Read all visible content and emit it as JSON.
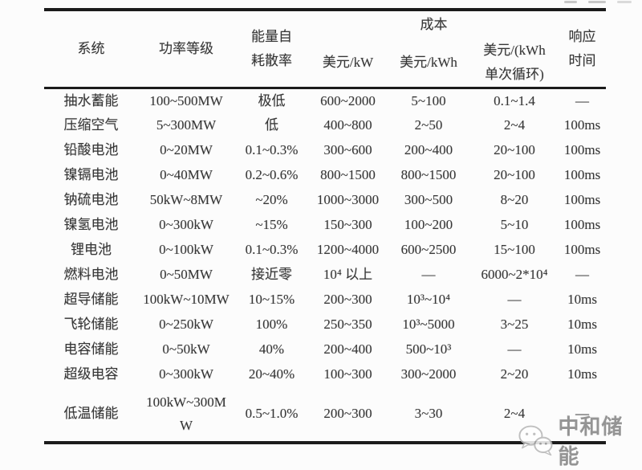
{
  "table": {
    "header": {
      "system": "系统",
      "power_rating": "功率等级",
      "self_dissipation": "能量自\n耗散率",
      "cost_group": "成本",
      "cost_usd_per_kw": "美元/kW",
      "cost_usd_per_kwh": "美元/kWh",
      "cost_usd_per_kwh_cycle": "美元/(kWh\n单次循环)",
      "response_time": "响应\n时间"
    },
    "rows": [
      [
        "抽水蓄能",
        "100~500MW",
        "极低",
        "600~2000",
        "5~100",
        "0.1~1.4",
        "—"
      ],
      [
        "压缩空气",
        "5~300MW",
        "低",
        "400~800",
        "2~50",
        "2~4",
        "100ms"
      ],
      [
        "铅酸电池",
        "0~20MW",
        "0.1~0.3%",
        "300~600",
        "200~400",
        "20~100",
        "100ms"
      ],
      [
        "镍镉电池",
        "0~40MW",
        "0.2~0.6%",
        "800~1500",
        "800~1500",
        "20~100",
        "100ms"
      ],
      [
        "钠硫电池",
        "50kW~8MW",
        "~20%",
        "1000~3000",
        "300~500",
        "8~20",
        "100ms"
      ],
      [
        "镍氢电池",
        "0~300kW",
        "~15%",
        "150~300",
        "100~200",
        "5~10",
        "100ms"
      ],
      [
        "锂电池",
        "0~100kW",
        "0.1~0.3%",
        "1200~4000",
        "600~2500",
        "15~100",
        "100ms"
      ],
      [
        "燃料电池",
        "0~50MW",
        "接近零",
        "10⁴ 以上",
        "—",
        "6000~2*10⁴",
        "—"
      ],
      [
        "超导储能",
        "100kW~10MW",
        "10~15%",
        "200~300",
        "10³~10⁴",
        "—",
        "10ms"
      ],
      [
        "飞轮储能",
        "0~250kW",
        "100%",
        "250~350",
        "10³~5000",
        "3~25",
        "10ms"
      ],
      [
        "电容储能",
        "0~50kW",
        "40%",
        "200~400",
        "500~10³",
        "—",
        "10ms"
      ],
      [
        "超级电容",
        "0~300kW",
        "20~40%",
        "100~300",
        "300~2000",
        "2~20",
        "10ms"
      ],
      [
        "低温储能",
        "100kW~300M\nW",
        "0.5~1.0%",
        "200~300",
        "3~30",
        "2~4",
        "—"
      ]
    ]
  },
  "watermark": {
    "label": "中和储能",
    "icon": "wechat-chat-bubbles-icon",
    "color": "#949494"
  },
  "colors": {
    "rule": "#1b1b1b",
    "text": "#363636",
    "background": "#fcfcfc"
  }
}
